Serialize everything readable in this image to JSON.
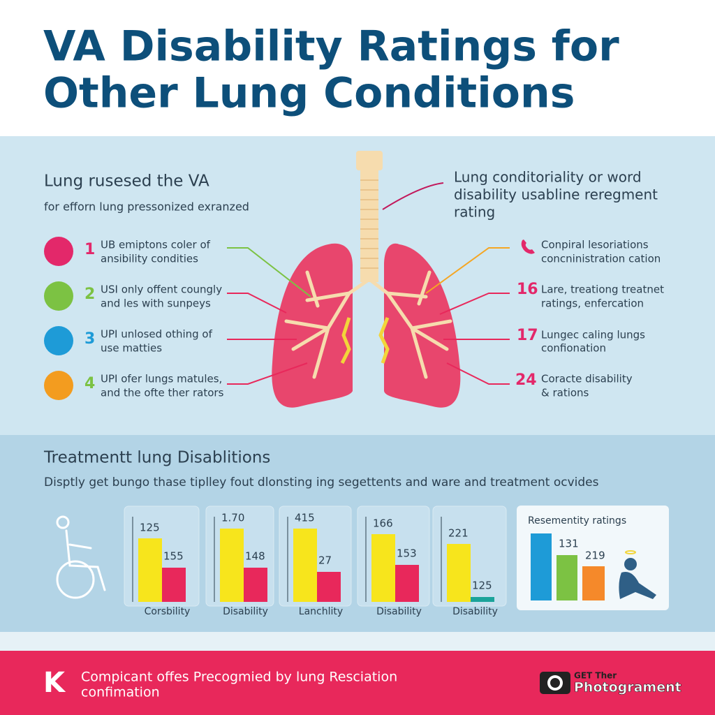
{
  "header": {
    "title": [
      "VA Disability Ratings for",
      "Other Lung Conditions"
    ]
  },
  "left_panel": {
    "heading": "Lung rusesed the VA",
    "subheading": "for efforn lung pressonized exranzed",
    "items": [
      {
        "number": "1",
        "lines": [
          "UB emiptons coler of",
          "ansibility condities"
        ]
      },
      {
        "number": "2",
        "lines": [
          "USI only offent coungly",
          "and les with sunpeys"
        ]
      },
      {
        "number": "3",
        "lines": [
          "UPI unlosed othing of",
          "use matties"
        ]
      },
      {
        "number": "4",
        "lines": [
          "UPI ofer lungs matules,",
          "and the ofte ther rators"
        ]
      }
    ]
  },
  "right_panel": {
    "heading": [
      "Lung conditoriality or word",
      "disability usabline reregment",
      "rating"
    ],
    "items": [
      {
        "lines": [
          "Conpiral lesoriations",
          "concninistration cation"
        ]
      },
      {
        "number": "16",
        "lines": [
          "Lare, treationg treatnet",
          "ratings, enfercation"
        ]
      },
      {
        "number": "17",
        "lines": [
          "Lungec caling lungs",
          "confionation"
        ]
      },
      {
        "number": "24",
        "lines": [
          "Coracte disability",
          "& rations"
        ]
      }
    ]
  },
  "treatment": {
    "heading": "Treatmentt lung Disablitions",
    "subheading": "Disptly get bungo thase tiplley fout dlonsting ing segettents and ware and treatment ocvides",
    "charts": [
      {
        "labels": [
          "125",
          "155"
        ],
        "caption": "Corsbility"
      },
      {
        "labels": [
          "1.70",
          "148"
        ],
        "caption": "Disability"
      },
      {
        "labels": [
          "415",
          "27"
        ],
        "caption": "Lanchlity"
      },
      {
        "labels": [
          "166",
          "153"
        ],
        "caption": "Disability"
      },
      {
        "labels": [
          "221",
          "125"
        ],
        "caption": "Disability"
      }
    ]
  },
  "ratings_panel": {
    "title": "Resementity ratings",
    "labels": [
      "131",
      "219"
    ]
  },
  "footer": {
    "logo_letter": "K",
    "text": [
      "Compicant offes Precogmied by lung Resciation",
      "confimation"
    ],
    "brand": [
      "GET Ther",
      "Photograment"
    ]
  }
}
